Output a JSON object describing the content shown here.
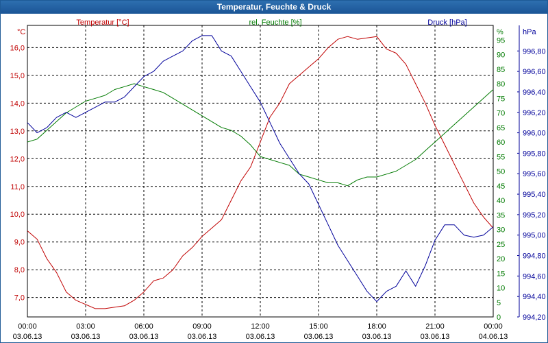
{
  "title": "Temperatur, Feuchte & Druck",
  "colors": {
    "temperature": "#c00000",
    "humidity": "#007a00",
    "pressure": "#00009a",
    "titlebar": "#1a5596"
  },
  "chart_data": {
    "type": "line",
    "title": "Temperatur, Feuchte & Druck",
    "x_ticks": [
      {
        "time": "00:00",
        "date": "03.06.13"
      },
      {
        "time": "03:00",
        "date": "03.06.13"
      },
      {
        "time": "06:00",
        "date": "03.06.13"
      },
      {
        "time": "09:00",
        "date": "03.06.13"
      },
      {
        "time": "12:00",
        "date": "03.06.13"
      },
      {
        "time": "15:00",
        "date": "03.06.13"
      },
      {
        "time": "18:00",
        "date": "03.06.13"
      },
      {
        "time": "21:00",
        "date": "03.06.13"
      },
      {
        "time": "00:00",
        "date": "04.06.13"
      }
    ],
    "x_range_hours": [
      0,
      24
    ],
    "axes": {
      "temperature": {
        "unit": "°C",
        "label": "Temperatur [°C]",
        "range": [
          6.3,
          16.8
        ],
        "ticks": [
          "7,0",
          "8,0",
          "9,0",
          "10,0",
          "11,0",
          "12,0",
          "13,0",
          "14,0",
          "15,0",
          "16,0"
        ]
      },
      "humidity": {
        "unit": "%",
        "label": "rel. Feuchte [%]",
        "range": [
          0,
          100
        ],
        "ticks": [
          "0",
          "5",
          "10",
          "15",
          "20",
          "25",
          "30",
          "35",
          "40",
          "45",
          "50",
          "55",
          "60",
          "65",
          "70",
          "75",
          "80",
          "85",
          "90",
          "95"
        ]
      },
      "pressure": {
        "unit": "hPa",
        "label": "Druck [hPa]",
        "range": [
          994.2,
          997.05
        ],
        "ticks": [
          "994,20",
          "994,40",
          "994,60",
          "994,80",
          "995,00",
          "995,20",
          "995,40",
          "995,60",
          "995,80",
          "996,00",
          "996,20",
          "996,40",
          "996,60",
          "996,80"
        ]
      }
    },
    "series": [
      {
        "name": "Temperatur [°C]",
        "axis": "temperature",
        "color": "#c00000",
        "points": [
          [
            0,
            9.4
          ],
          [
            0.5,
            9.1
          ],
          [
            1,
            8.4
          ],
          [
            1.5,
            7.9
          ],
          [
            2,
            7.2
          ],
          [
            2.5,
            6.9
          ],
          [
            3,
            6.75
          ],
          [
            3.5,
            6.6
          ],
          [
            4,
            6.6
          ],
          [
            4.5,
            6.65
          ],
          [
            5,
            6.7
          ],
          [
            5.5,
            6.9
          ],
          [
            6,
            7.2
          ],
          [
            6.5,
            7.6
          ],
          [
            7,
            7.7
          ],
          [
            7.5,
            8.0
          ],
          [
            8,
            8.5
          ],
          [
            8.5,
            8.8
          ],
          [
            9,
            9.2
          ],
          [
            9.5,
            9.5
          ],
          [
            10,
            9.8
          ],
          [
            10.5,
            10.5
          ],
          [
            11,
            11.2
          ],
          [
            11.5,
            11.7
          ],
          [
            12,
            12.6
          ],
          [
            12.5,
            13.5
          ],
          [
            13,
            14.0
          ],
          [
            13.5,
            14.7
          ],
          [
            14,
            15.0
          ],
          [
            14.5,
            15.3
          ],
          [
            15,
            15.6
          ],
          [
            15.5,
            16.0
          ],
          [
            16,
            16.3
          ],
          [
            16.5,
            16.4
          ],
          [
            17,
            16.3
          ],
          [
            17.5,
            16.35
          ],
          [
            18,
            16.4
          ],
          [
            18.5,
            15.95
          ],
          [
            19,
            15.8
          ],
          [
            19.5,
            15.4
          ],
          [
            20,
            14.7
          ],
          [
            20.5,
            14.0
          ],
          [
            21,
            13.2
          ],
          [
            21.5,
            12.5
          ],
          [
            22,
            11.8
          ],
          [
            22.5,
            11.1
          ],
          [
            23,
            10.4
          ],
          [
            23.5,
            9.9
          ],
          [
            24,
            9.5
          ]
        ]
      },
      {
        "name": "rel. Feuchte [%]",
        "axis": "humidity",
        "color": "#007a00",
        "points": [
          [
            0,
            60
          ],
          [
            0.5,
            61
          ],
          [
            1,
            64
          ],
          [
            1.5,
            67
          ],
          [
            2,
            70
          ],
          [
            2.5,
            72
          ],
          [
            3,
            74
          ],
          [
            3.5,
            75
          ],
          [
            4,
            76
          ],
          [
            4.5,
            78
          ],
          [
            5,
            79
          ],
          [
            5.5,
            80
          ],
          [
            6,
            79
          ],
          [
            6.5,
            78
          ],
          [
            7,
            77
          ],
          [
            7.5,
            75
          ],
          [
            8,
            73
          ],
          [
            8.5,
            71
          ],
          [
            9,
            69
          ],
          [
            9.5,
            67
          ],
          [
            10,
            65
          ],
          [
            10.5,
            64
          ],
          [
            11,
            62
          ],
          [
            11.5,
            59
          ],
          [
            12,
            55
          ],
          [
            12.5,
            54
          ],
          [
            13,
            53
          ],
          [
            13.5,
            52
          ],
          [
            14,
            49
          ],
          [
            14.5,
            48
          ],
          [
            15,
            47
          ],
          [
            15.5,
            46
          ],
          [
            16,
            46
          ],
          [
            16.5,
            45
          ],
          [
            17,
            47
          ],
          [
            17.5,
            48
          ],
          [
            18,
            48
          ],
          [
            18.5,
            49
          ],
          [
            19,
            50
          ],
          [
            19.5,
            52
          ],
          [
            20,
            54
          ],
          [
            20.5,
            57
          ],
          [
            21,
            60
          ],
          [
            21.5,
            63
          ],
          [
            22,
            66
          ],
          [
            22.5,
            69
          ],
          [
            23,
            72
          ],
          [
            23.5,
            75
          ],
          [
            24,
            78
          ]
        ]
      },
      {
        "name": "Druck [hPa]",
        "axis": "pressure",
        "color": "#00009a",
        "points": [
          [
            0,
            996.1
          ],
          [
            0.5,
            996.0
          ],
          [
            1,
            996.05
          ],
          [
            1.5,
            996.15
          ],
          [
            2,
            996.2
          ],
          [
            2.5,
            996.15
          ],
          [
            3,
            996.2
          ],
          [
            3.5,
            996.25
          ],
          [
            4,
            996.3
          ],
          [
            4.5,
            996.3
          ],
          [
            5,
            996.35
          ],
          [
            5.5,
            996.45
          ],
          [
            6,
            996.55
          ],
          [
            6.5,
            996.6
          ],
          [
            7,
            996.7
          ],
          [
            7.5,
            996.75
          ],
          [
            8,
            996.8
          ],
          [
            8.5,
            996.9
          ],
          [
            9,
            996.95
          ],
          [
            9.5,
            996.95
          ],
          [
            10,
            996.8
          ],
          [
            10.5,
            996.75
          ],
          [
            11,
            996.6
          ],
          [
            11.5,
            996.45
          ],
          [
            12,
            996.3
          ],
          [
            12.5,
            996.1
          ],
          [
            13,
            995.9
          ],
          [
            13.5,
            995.75
          ],
          [
            14,
            995.6
          ],
          [
            14.5,
            995.5
          ],
          [
            15,
            995.3
          ],
          [
            15.5,
            995.1
          ],
          [
            16,
            994.9
          ],
          [
            16.5,
            994.75
          ],
          [
            17,
            994.6
          ],
          [
            17.5,
            994.45
          ],
          [
            18,
            994.35
          ],
          [
            18.5,
            994.45
          ],
          [
            19,
            994.5
          ],
          [
            19.5,
            994.65
          ],
          [
            20,
            994.5
          ],
          [
            20.5,
            994.7
          ],
          [
            21,
            994.95
          ],
          [
            21.5,
            995.1
          ],
          [
            22,
            995.1
          ],
          [
            22.5,
            995.0
          ],
          [
            23,
            994.98
          ],
          [
            23.5,
            995.0
          ],
          [
            24,
            995.08
          ]
        ]
      }
    ]
  }
}
